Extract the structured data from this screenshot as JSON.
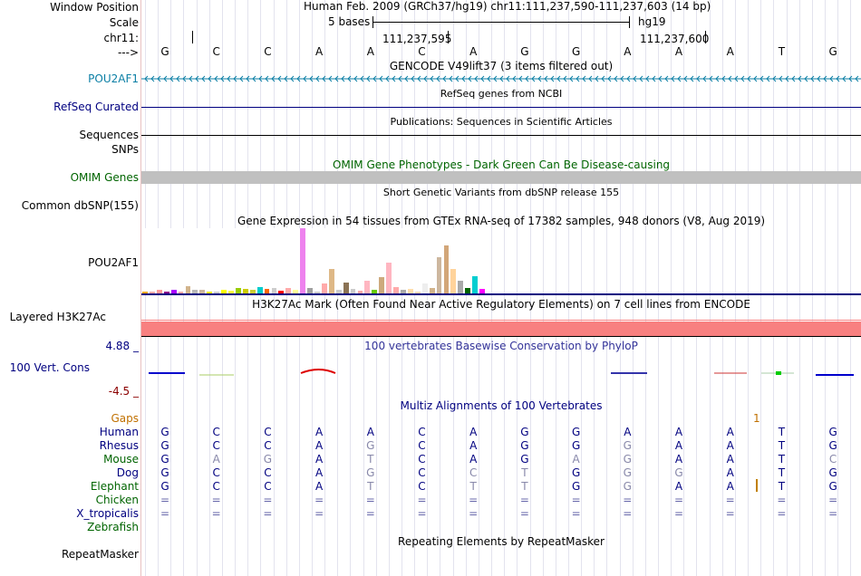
{
  "header": {
    "window_position_label": "Window Position",
    "window_position_value": "Human Feb. 2009 (GRCh37/hg19)   chr11:111,237,590-111,237,603 (14 bp)",
    "scale_label": "Scale",
    "scale_text": "5 bases",
    "scale_assembly": "hg19",
    "chrom_label": "chr11:",
    "coord_1": "111,237,595",
    "coord_2": "111,237,600",
    "strand_label": "--->"
  },
  "sequence": [
    "G",
    "C",
    "C",
    "A",
    "A",
    "C",
    "A",
    "G",
    "G",
    "A",
    "A",
    "A",
    "T",
    "G"
  ],
  "tracks": {
    "gencode_title": "GENCODE V49lift37 (3 items filtered out)",
    "gencode_label": "POU2AF1",
    "refseq_title": "RefSeq genes from NCBI",
    "refseq_label": "RefSeq Curated",
    "pubs_title": "Publications: Sequences in Scientific Articles",
    "pubs_label": "Sequences",
    "snps_label": "SNPs",
    "omim_title": "OMIM Gene Phenotypes - Dark Green Can Be Disease-causing",
    "omim_label": "OMIM Genes",
    "dbsnp_title": "Short Genetic Variants from dbSNP release 155",
    "dbsnp_label": "Common dbSNP(155)",
    "gtex_title": "Gene Expression in 54 tissues from GTEx RNA-seq of 17382 samples, 948 donors (V8, Aug 2019)",
    "gtex_label": "POU2AF1",
    "h3k_title": "H3K27Ac Mark (Often Found Near Active Regulatory Elements) on 7 cell lines from ENCODE",
    "h3k_label": "Layered H3K27Ac",
    "phylop_title": "100 vertebrates Basewise Conservation by PhyloP",
    "phylop_max": "4.88 _",
    "phylop_label": "100 Vert. Cons",
    "phylop_min": "-4.5 _",
    "multiz_title": "Multiz Alignments of 100 Vertebrates",
    "gaps_label": "Gaps",
    "gaps_value": "1",
    "repeat_title": "Repeating Elements by RepeatMasker",
    "repeat_label": "RepeatMasker"
  },
  "species": [
    {
      "name": "Human",
      "color": "#000080",
      "bases": [
        "G",
        "C",
        "C",
        "A",
        "A",
        "C",
        "A",
        "G",
        "G",
        "A",
        "A",
        "A",
        "T",
        "G"
      ]
    },
    {
      "name": "Rhesus",
      "color": "#000080",
      "bases": [
        "G",
        "C",
        "C",
        "A",
        "G",
        "C",
        "A",
        "G",
        "G",
        "G",
        "A",
        "A",
        "T",
        "G"
      ]
    },
    {
      "name": "Mouse",
      "color": "#006400",
      "bases": [
        "G",
        "A",
        "G",
        "A",
        "T",
        "C",
        "A",
        "G",
        "A",
        "G",
        "A",
        "A",
        "T",
        "C"
      ]
    },
    {
      "name": "Dog",
      "color": "#000080",
      "bases": [
        "G",
        "C",
        "C",
        "A",
        "G",
        "C",
        "C",
        "T",
        "G",
        "G",
        "G",
        "A",
        "T",
        "G"
      ]
    },
    {
      "name": "Elephant",
      "color": "#006400",
      "bases": [
        "G",
        "C",
        "C",
        "A",
        "T",
        "C",
        "T",
        "T",
        "G",
        "G",
        "A",
        "A",
        "T",
        "G"
      ]
    },
    {
      "name": "Chicken",
      "color": "#006400",
      "bases": [
        "=",
        "=",
        "=",
        "=",
        "=",
        "=",
        "=",
        "=",
        "=",
        "=",
        "=",
        "=",
        "=",
        "="
      ]
    },
    {
      "name": "X_tropicalis",
      "color": "#000080",
      "bases": [
        "=",
        "=",
        "=",
        "=",
        "=",
        "=",
        "=",
        "=",
        "=",
        "=",
        "=",
        "=",
        "=",
        "="
      ]
    },
    {
      "name": "Zebrafish",
      "color": "#006400",
      "bases": [
        "",
        "",
        "",
        "",
        "",
        "",
        "",
        "",
        "",
        "",
        "",
        "",
        "",
        ""
      ]
    }
  ],
  "colors": {
    "track_label_blue": "#000080",
    "gencode_blue": "#0b7fa5",
    "omim_green": "#006400",
    "gaps_orange": "#c07000",
    "h3k_pink": "#f88080",
    "omim_gray": "#c0c0c0",
    "phylop_max_color": "#000080",
    "phylop_min_color": "#8b0000"
  },
  "gtex_levels": [
    0.03,
    0.03,
    0.05,
    0.03,
    0.05,
    0.02,
    0.11,
    0.06,
    0.06,
    0.02,
    0.03,
    0.05,
    0.04,
    0.09,
    0.07,
    0.06,
    0.1,
    0.07,
    0.08,
    0.04,
    0.08,
    0.05,
    1.0,
    0.08,
    0.03,
    0.15,
    0.37,
    0.06,
    0.16,
    0.07,
    0.04,
    0.2,
    0.06,
    0.25,
    0.47,
    0.1,
    0.05,
    0.07,
    0.03,
    0.15,
    0.08,
    0.55,
    0.74,
    0.38,
    0.19,
    0.09,
    0.26,
    0.07
  ],
  "gtex_colors": [
    "#ffaa00",
    "#ffaaaa",
    "#ff9999",
    "#8b008b",
    "#aa00ff",
    "#ffaaaa",
    "#d2b48c",
    "#b8b8b8",
    "#cdb79e",
    "#eeee00",
    "#ccc",
    "#ffff00",
    "#ffff44",
    "#99cc00",
    "#cccc00",
    "#cccc33",
    "#00cccc",
    "#ff6600",
    "#cccccc",
    "#ff0000",
    "#ffaaaa",
    "#ffff99",
    "#ee82ee",
    "#a0a0a0",
    "#cccccc",
    "#ffaaaa",
    "#deb887",
    "#cccccc",
    "#8b7355",
    "#cccccc",
    "#ffaaaa",
    "#ffb6c1",
    "#66cc00",
    "#cdaa7d",
    "#ffb6c1",
    "#ffaaaa",
    "#aaaaaa",
    "#ffdead",
    "#ffdab9",
    "#eee",
    "#d2b48c",
    "#cdb79e",
    "#d2a679",
    "#ffd39b",
    "#aaaaaa",
    "#006400",
    "#00ced1",
    "#ff00ff"
  ]
}
